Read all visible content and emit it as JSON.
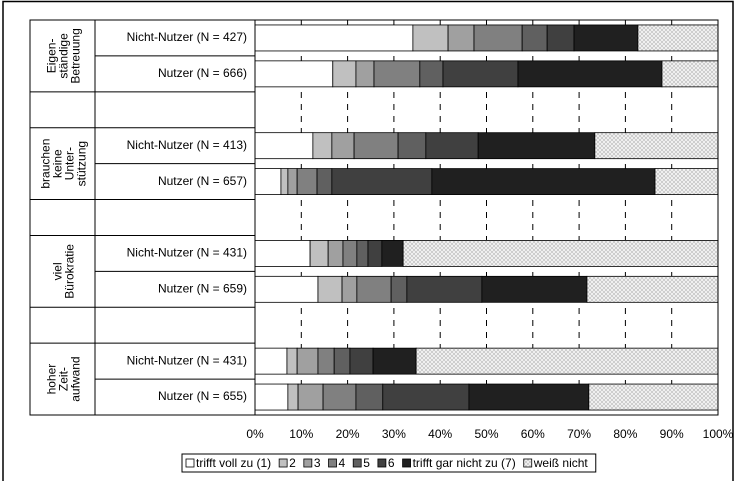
{
  "chart_data": {
    "type": "stacked-barh",
    "groups": [
      {
        "label": [
          "Eigen-",
          "ständige",
          "Betreuung"
        ],
        "rows": [
          0,
          1
        ]
      },
      {
        "label": [
          "brauchen",
          "keine",
          "Unter-",
          "stützung"
        ],
        "rows": [
          2,
          3
        ]
      },
      {
        "label": [
          "viel",
          "Bürokratie"
        ],
        "rows": [
          4,
          5
        ]
      },
      {
        "label": [
          "hoher",
          "Zeit-",
          "aufwand"
        ],
        "rows": [
          6,
          7
        ]
      }
    ],
    "categories": [
      "Nicht-Nutzer (N = 427)",
      "Nutzer (N = 666)",
      "Nicht-Nutzer (N = 413)",
      "Nutzer (N = 657)",
      "Nicht-Nutzer (N = 431)",
      "Nutzer (N = 659)",
      "Nicht-Nutzer (N = 431)",
      "Nutzer (N = 655)"
    ],
    "series": [
      {
        "name": "trifft voll zu (1)",
        "color": "#ffffff",
        "values": [
          34.1,
          16.8,
          12.5,
          5.6,
          11.9,
          13.6,
          6.9,
          7.1
        ]
      },
      {
        "name": "2",
        "color": "#c0c0c0",
        "values": [
          7.6,
          5.0,
          4.1,
          1.5,
          3.9,
          5.2,
          2.2,
          2.2
        ]
      },
      {
        "name": "3",
        "color": "#a0a0a0",
        "values": [
          5.6,
          3.9,
          4.8,
          2.0,
          3.2,
          3.2,
          4.5,
          5.4
        ]
      },
      {
        "name": "4",
        "color": "#808080",
        "values": [
          10.4,
          9.9,
          9.5,
          4.3,
          3.0,
          7.4,
          3.5,
          7.1
        ]
      },
      {
        "name": "5",
        "color": "#606060",
        "values": [
          5.4,
          5.0,
          6.0,
          3.2,
          2.4,
          3.4,
          3.4,
          5.8
        ]
      },
      {
        "name": "6",
        "color": "#404040",
        "values": [
          5.8,
          16.2,
          11.3,
          21.6,
          3.0,
          16.2,
          5.0,
          18.6
        ]
      },
      {
        "name": "trifft gar nicht zu (7)",
        "color": "#202020",
        "values": [
          13.8,
          31.1,
          25.2,
          48.2,
          4.6,
          22.7,
          9.3,
          25.9
        ]
      },
      {
        "name": "weiß nicht",
        "color": "#e8e8e8",
        "pattern": "crosshatch",
        "values": [
          17.3,
          12.1,
          26.6,
          13.6,
          68.0,
          28.3,
          65.2,
          27.9
        ]
      }
    ],
    "xlim": [
      0,
      100
    ],
    "xticks": [
      {
        "value": 0,
        "label": "0%"
      },
      {
        "value": 10,
        "label": "10%"
      },
      {
        "value": 20,
        "label": "20%"
      },
      {
        "value": 30,
        "label": "30%"
      },
      {
        "value": 40,
        "label": "40%"
      },
      {
        "value": 50,
        "label": "50%"
      },
      {
        "value": 60,
        "label": "60%"
      },
      {
        "value": 70,
        "label": "70%"
      },
      {
        "value": 80,
        "label": "80%"
      },
      {
        "value": 90,
        "label": "90%"
      },
      {
        "value": 100,
        "label": "100%"
      }
    ],
    "grid": true,
    "legend": "bottom"
  }
}
